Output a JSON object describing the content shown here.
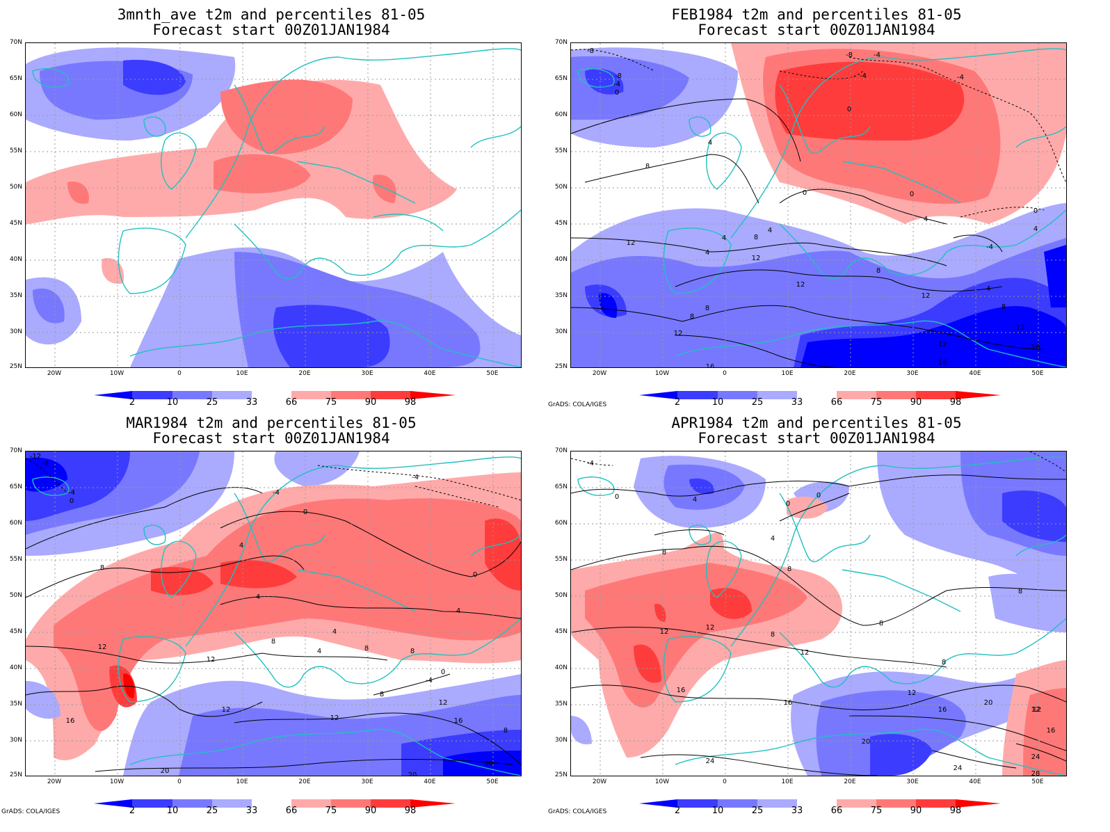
{
  "credit": "GrADS: COLA/IGES",
  "lat_labels": [
    "70N",
    "65N",
    "60N",
    "55N",
    "50N",
    "45N",
    "40N",
    "35N",
    "30N",
    "25N"
  ],
  "lon_labels": [
    "20W",
    "10W",
    "0",
    "10E",
    "20E",
    "30E",
    "40E",
    "50E"
  ],
  "colorbar": {
    "levels": [
      "2",
      "10",
      "25",
      "33",
      "66",
      "75",
      "90",
      "98"
    ],
    "colors": [
      "#0000ff",
      "#3c3cff",
      "#7878ff",
      "#aaaaff",
      "#ffffff",
      "#ffaaaa",
      "#ff7878",
      "#ff3c3c",
      "#ff0000"
    ]
  },
  "colors": {
    "land_outline": "#20c0c0",
    "contour": "#000000",
    "grid": "#999999"
  },
  "panels": [
    {
      "line1": "3mnth_ave t2m and percentiles 81-05",
      "line2": "Forecast start 00Z01JAN1984",
      "contour_labels": []
    },
    {
      "line1": "FEB1984 t2m and percentiles 81-05",
      "line2": "Forecast start 00Z01JAN1984",
      "contour_labels": [
        "-8",
        "-8",
        "-8",
        "-4",
        "-4",
        "-4",
        "0",
        "0",
        "-4",
        "4",
        "8",
        "0",
        "0",
        "4",
        "12",
        "4",
        "4",
        "8",
        "12",
        "4",
        "8",
        "12",
        "12",
        "8",
        "8",
        "12",
        "12",
        "16",
        "4",
        "8",
        "12",
        "16",
        "0",
        "4",
        "-4",
        "16"
      ]
    },
    {
      "line1": "MAR1984 t2m and percentiles 81-05",
      "line2": "Forecast start 00Z01JAN1984",
      "contour_labels": [
        "-12",
        "-8",
        "-4",
        "0",
        "-4",
        "0",
        "-4",
        "4",
        "8",
        "0",
        "4",
        "4",
        "12",
        "8",
        "4",
        "4",
        "8",
        "8",
        "12",
        "12",
        "12",
        "8",
        "0",
        "-4",
        "16",
        "20",
        "8",
        "20",
        "20",
        "12",
        "16"
      ]
    },
    {
      "line1": "APR1984 t2m and percentiles 81-05",
      "line2": "Forecast start 00Z01JAN1984",
      "contour_labels": [
        "-4",
        "0",
        "4",
        "0",
        "0",
        "4",
        "8",
        "8",
        "12",
        "12",
        "8",
        "12",
        "8",
        "12",
        "16",
        "8",
        "8",
        "16",
        "12",
        "16",
        "20",
        "20",
        "24",
        "12",
        "16",
        "24",
        "28",
        "24"
      ]
    }
  ]
}
